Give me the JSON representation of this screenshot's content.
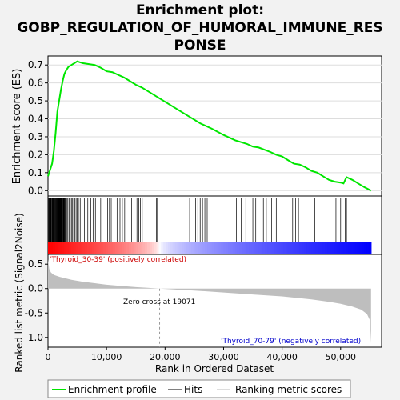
{
  "chart_data": {
    "type": "line",
    "title_lines": [
      "Enrichment plot:",
      "GOBP_REGULATION_OF_HUMORAL_IMMUNE_RES",
      "PONSE"
    ],
    "top_panel": {
      "ylabel": "Enrichment score (ES)",
      "ylim": [
        -0.03,
        0.75
      ],
      "yticks": [
        "0.0",
        "0.1",
        "0.2",
        "0.3",
        "0.4",
        "0.5",
        "0.6",
        "0.7"
      ],
      "ytick_values": [
        0.0,
        0.1,
        0.2,
        0.3,
        0.4,
        0.5,
        0.6,
        0.7
      ],
      "es_curve": {
        "x": [
          0,
          300,
          700,
          1000,
          1300,
          1600,
          1900,
          2200,
          2500,
          2800,
          3100,
          3500,
          4000,
          4500,
          5000,
          5500,
          6000,
          7000,
          8000,
          9000,
          10000,
          11000,
          12000,
          13000,
          14000,
          15000,
          16000,
          17000,
          18000,
          19000,
          20000,
          22000,
          24000,
          26000,
          28000,
          30000,
          32000,
          34000,
          35000,
          36000,
          38000,
          39000,
          40000,
          41000,
          42000,
          43000,
          44000,
          45000,
          46000,
          47000,
          48000,
          49000,
          50000,
          50500,
          51000,
          52000,
          53000,
          54000,
          55200
        ],
        "y": [
          0.08,
          0.11,
          0.15,
          0.22,
          0.32,
          0.44,
          0.5,
          0.56,
          0.61,
          0.65,
          0.67,
          0.69,
          0.7,
          0.71,
          0.72,
          0.715,
          0.71,
          0.705,
          0.7,
          0.685,
          0.665,
          0.66,
          0.645,
          0.63,
          0.61,
          0.59,
          0.575,
          0.555,
          0.535,
          0.515,
          0.495,
          0.455,
          0.415,
          0.375,
          0.345,
          0.31,
          0.28,
          0.26,
          0.245,
          0.24,
          0.215,
          0.2,
          0.19,
          0.17,
          0.15,
          0.145,
          0.13,
          0.11,
          0.1,
          0.08,
          0.06,
          0.05,
          0.045,
          0.04,
          0.075,
          0.06,
          0.04,
          0.02,
          0.0
        ]
      }
    },
    "hits": [
      60,
      150,
      250,
      340,
      430,
      520,
      610,
      700,
      780,
      860,
      940,
      1020,
      1100,
      1170,
      1240,
      1310,
      1380,
      1450,
      1520,
      1590,
      1660,
      1730,
      1800,
      1870,
      1940,
      2010,
      2080,
      2150,
      2220,
      2300,
      2380,
      2460,
      2540,
      2620,
      2700,
      2780,
      2860,
      2940,
      3020,
      3100,
      3250,
      3400,
      3600,
      3800,
      4000,
      4200,
      4400,
      4600,
      4800,
      5000,
      5200,
      5500,
      5800,
      6200,
      6800,
      7300,
      7700,
      8100,
      9000,
      10200,
      10500,
      10800,
      11800,
      12300,
      12700,
      13100,
      14300,
      15200,
      15500,
      15800,
      16100,
      18500,
      18700,
      23600,
      24200,
      25200,
      25600,
      26000,
      26400,
      26800,
      27200,
      32200,
      33000,
      33800,
      34500,
      35000,
      35500,
      36800,
      37300,
      38200,
      39000,
      41800,
      42300,
      42800,
      45600,
      49200,
      50000,
      50800,
      51000
    ],
    "bottom_panel": {
      "ylabel": "Ranked list metric (Signal2Noise)",
      "xlabel": "Rank in Ordered Dataset",
      "ylim": [
        -1.2,
        0.7
      ],
      "yticks": [
        "0.5",
        "0.0",
        "-0.5",
        "-1.0"
      ],
      "ytick_values": [
        0.5,
        0.0,
        -0.5,
        -1.0
      ],
      "xlim": [
        0,
        57000
      ],
      "xticks": [
        "0",
        "10,000",
        "20,000",
        "30,000",
        "40,000",
        "50,000"
      ],
      "xtick_values": [
        0,
        10000,
        20000,
        30000,
        40000,
        50000
      ],
      "metric_curve": {
        "x": [
          0,
          200,
          500,
          1000,
          2000,
          4000,
          6000,
          8000,
          10000,
          12000,
          15000,
          17000,
          19071,
          22000,
          25000,
          30000,
          35000,
          40000,
          45000,
          48000,
          50000,
          52000,
          53500,
          54500,
          55000,
          55200
        ],
        "y": [
          0.6,
          0.4,
          0.33,
          0.28,
          0.24,
          0.18,
          0.14,
          0.11,
          0.08,
          0.06,
          0.03,
          0.015,
          0.0,
          -0.02,
          -0.04,
          -0.08,
          -0.12,
          -0.16,
          -0.22,
          -0.27,
          -0.31,
          -0.37,
          -0.43,
          -0.52,
          -0.65,
          -1.12
        ]
      },
      "zero_cross_label": "Zero cross at 19071",
      "zero_cross_rank": 19071,
      "positive_label": "'Thyroid_30-39' (positively correlated)",
      "negative_label": "'Thyroid_70-79' (negatively correlated)"
    },
    "total_ranks": 55200,
    "legend": {
      "placement": "bottom",
      "items": [
        "Enrichment profile",
        "Hits",
        "Ranking metric scores"
      ]
    },
    "colors": {
      "es_line": "#00e600",
      "positive": "#ff0000",
      "negative": "#0000ff",
      "metric_fill": "#bebebe",
      "hit": "#000000"
    }
  }
}
